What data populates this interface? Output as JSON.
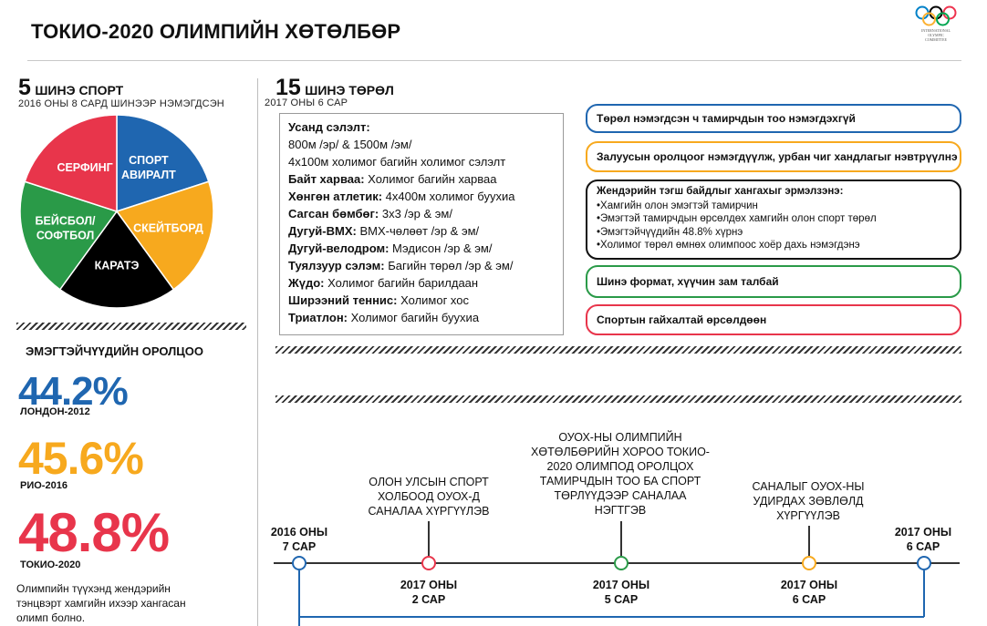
{
  "title": "ТОКИО-2020 ОЛИМПИЙН ХӨТӨЛБӨР",
  "logo": {
    "text_lines": [
      "INTERNATIONAL",
      "OLYMPIC",
      "COMMITTEE"
    ],
    "ring_colors": [
      "#0081C8",
      "#000000",
      "#EE334E",
      "#FCB131",
      "#00A651"
    ]
  },
  "new_sports": {
    "count": "5",
    "label": "ШИНЭ СПОРТ",
    "caption": "2016 ОНЫ 8 САРД ШИНЭЭР НЭМЭГДСЭН"
  },
  "new_events": {
    "count": "15",
    "label": "ШИНЭ ТӨРӨЛ",
    "caption": "2017 ОНЫ 6 САР",
    "items": [
      {
        "sport": "Усанд сэлэлт:",
        "detail": ""
      },
      {
        "sport": "",
        "detail": "800м /эр/ & 1500м /эм/"
      },
      {
        "sport": "",
        "detail": "4x100м холимог багийн холимог сэлэлт"
      },
      {
        "sport": "Байт харваа:",
        "detail": " Холимог багийн харваа"
      },
      {
        "sport": "Хөнгөн атлетик:",
        "detail": " 4x400м холимог буухиа"
      },
      {
        "sport": "Сагсан бөмбөг:",
        "detail": " 3x3 /эр & эм/"
      },
      {
        "sport": "Дугуй-BMX:",
        "detail": " BMX-чөлөөт /эр & эм/"
      },
      {
        "sport": "Дугуй-велодром:",
        "detail": " Мэдисон /эр & эм/"
      },
      {
        "sport": "Туялзуур сэлэм:",
        "detail": " Багийн төрөл /эр & эм/"
      },
      {
        "sport": "Жүдо:",
        "detail": " Холимог багийн барилдаан"
      },
      {
        "sport": "Ширээний теннис:",
        "detail": " Холимог хос"
      },
      {
        "sport": "Триатлон:",
        "detail": " Холимог багийн буухиа"
      }
    ]
  },
  "women": {
    "title": "ЭМЭГТЭЙЧҮҮДИЙН ОРОЛЦОО",
    "stats": [
      {
        "value": "44.2%",
        "label": "ЛОНДОН-2012",
        "color": "#1f66b0"
      },
      {
        "value": "45.6%",
        "label": "РИО-2016",
        "color": "#f7a91e"
      },
      {
        "value": "48.8%",
        "label": "ТОКИО-2020",
        "color": "#e8354b"
      }
    ],
    "note": [
      "Олимпийн түүхэнд жендэрийн",
      "тэнцвэрт хамгийн ихээр хангасан",
      "олимп болно."
    ]
  },
  "features": {
    "box1": "Төрөл нэмэгдсэн ч тамирчдын тоо нэмэгдэхгүй",
    "box2": "Залуусын оролцоог нэмэгдүүлж, урбан чиг хандлагыг нэвтрүүлнэ",
    "box3_title": "Жендэрийн тэгш байдлыг хангахыг эрмэлзэнэ:",
    "box3_items": [
      "•Хамгийн олон эмэгтэй тамирчин",
      "•Эмэгтэй тамирчдын өрсөлдөх хамгийн олон спорт төрөл",
      "•Эмэгтэйчүүдийн 48.8% хүрнэ",
      "•Холимог төрөл өмнөх олимпоос хоёр дахь нэмэгдэнэ"
    ],
    "box4": "Шинэ формат, хүүчин зам талбай",
    "box5": "Спортын гайхалтай өрсөлдөөн",
    "colors": {
      "box1": "#1f66b0",
      "box2": "#f7a91e",
      "box3": "#111111",
      "box4": "#2a9a48",
      "box5": "#e8354b"
    }
  },
  "timeline": {
    "points": [
      {
        "date": [
          "2016 ОНЫ",
          "7 САР"
        ],
        "text": [],
        "color": "#1f66b0"
      },
      {
        "date": [
          "2017 ОНЫ",
          "2 САР"
        ],
        "text": [
          "ОЛОН УЛСЫН СПОРТ",
          "ХОЛБООД ОУОХ-Д",
          "САНАЛАА ХҮРГҮҮЛЭВ"
        ],
        "color": "#e8354b"
      },
      {
        "date": [
          "2017 ОНЫ",
          "5 САР"
        ],
        "text": [
          "ОУОХ-НЫ ОЛИМПИЙН",
          "ХӨТӨЛБӨРИЙН ХОРОО ТОКИО-",
          "2020 ОЛИМПОД ОРОЛЦОХ",
          "ТАМИРЧДЫН ТОО БА СПОРТ",
          "ТӨРЛҮҮДЭЭР САНАЛАА",
          "НЭГТГЭВ"
        ],
        "color": "#2a9a48"
      },
      {
        "date": [
          "2017 ОНЫ",
          "6 САР"
        ],
        "text": [
          "САНАЛЫГ ОУОХ-НЫ",
          "УДИРДАХ ЗӨВЛӨЛД",
          "ХҮРГҮҮЛЭВ"
        ],
        "color": "#f7a91e"
      },
      {
        "date": [
          "2017 ОНЫ",
          "6 САР"
        ],
        "text": [],
        "color": "#1f66b0"
      }
    ]
  },
  "chart_data": {
    "type": "pie",
    "title": "",
    "categories": [
      "СПОРТ АВИРАЛТ",
      "СКЕЙТБОРД",
      "КАРАТЭ",
      "БЕЙСБОЛ/ СОФТБОЛ",
      "СЕРФИНГ"
    ],
    "label_lines": [
      [
        "СПОРТ",
        "АВИРАЛТ"
      ],
      [
        "СКЕЙТБОРД"
      ],
      [
        "КАРАТЭ"
      ],
      [
        "БЕЙСБОЛ/",
        "СОФТБОЛ"
      ],
      [
        "СЕРФИНГ"
      ]
    ],
    "values": [
      1,
      1,
      1,
      1,
      1
    ],
    "colors": [
      "#1f66b0",
      "#f7a91e",
      "#000000",
      "#2a9a48",
      "#e8354b"
    ],
    "start_angle_deg": 0,
    "direction": "clockwise",
    "legend": "none"
  }
}
